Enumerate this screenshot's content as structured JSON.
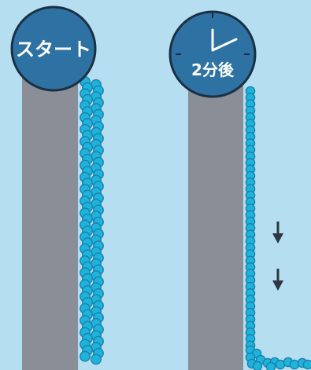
{
  "start_panel": {
    "label": "スタート"
  },
  "after_panel": {
    "label": "2分後"
  },
  "icons": {
    "clock": "clock-icon",
    "arrow": "down-arrow-icon"
  },
  "colors": {
    "background": "#b5dff0",
    "pillar": "#8a8e96",
    "badge_fill": "#2e72a3",
    "badge_stroke": "#1b2f44",
    "bead_fill": "#1eb4da",
    "bead_stroke": "#1c7fae",
    "arrow": "#2d3641"
  }
}
